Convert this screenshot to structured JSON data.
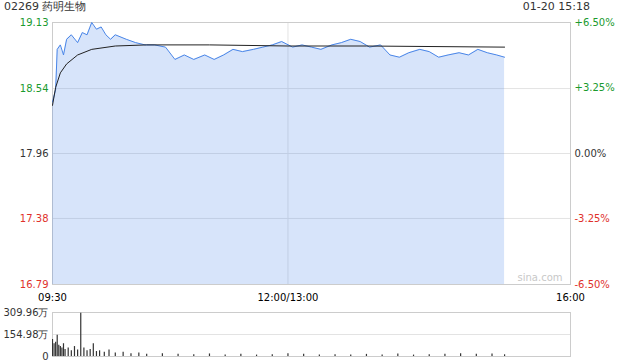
{
  "chart_data": {
    "type": "line",
    "title": "02269 药明生物",
    "subtitle": "01-20 15:18",
    "watermark": "sina.com",
    "grid": true,
    "xlim": [
      0,
      330
    ],
    "xticks": [
      {
        "value": 0,
        "label": "09:30"
      },
      {
        "value": 150,
        "label": "12:00/13:00"
      },
      {
        "value": 330,
        "label": "16:00"
      }
    ],
    "ylim": [
      16.79,
      19.13
    ],
    "yticks": [
      16.79,
      17.38,
      17.96,
      18.54,
      19.13
    ],
    "y2lim": [
      -6.5,
      6.5
    ],
    "y2ticks": [
      {
        "value": -6.5,
        "label": "-6.50%"
      },
      {
        "value": -3.25,
        "label": "-3.25%"
      },
      {
        "value": 0,
        "label": "0.00%"
      },
      {
        "value": 3.25,
        "label": "+3.25%"
      },
      {
        "value": 6.5,
        "label": "+6.50%"
      }
    ],
    "series": [
      {
        "type": "area",
        "color": "#4a86e8",
        "x": [
          0,
          2,
          3,
          5,
          7,
          9,
          12,
          16,
          19,
          22,
          25,
          28,
          31,
          34,
          37,
          40,
          47,
          53,
          59,
          65,
          72,
          78,
          84,
          90,
          97,
          103,
          109,
          115,
          121,
          128,
          134,
          140,
          146,
          153,
          159,
          165,
          171,
          178,
          184,
          190,
          196,
          202,
          209,
          215,
          221,
          227,
          234,
          240,
          246,
          252,
          259,
          265,
          271,
          277,
          283,
          288
        ],
        "values": [
          18.42,
          18.53,
          18.89,
          18.93,
          18.84,
          18.98,
          19.02,
          18.95,
          19.04,
          19.02,
          19.13,
          19.07,
          19.09,
          19.02,
          18.98,
          19.02,
          18.98,
          18.95,
          18.93,
          18.93,
          18.91,
          18.8,
          18.84,
          18.8,
          18.84,
          18.8,
          18.84,
          18.89,
          18.87,
          18.89,
          18.91,
          18.93,
          18.96,
          18.91,
          18.93,
          18.91,
          18.89,
          18.93,
          18.95,
          18.98,
          18.96,
          18.91,
          18.93,
          18.84,
          18.82,
          18.86,
          18.89,
          18.87,
          18.82,
          18.84,
          18.86,
          18.84,
          18.89,
          18.86,
          18.84,
          18.82
        ]
      },
      {
        "type": "line",
        "color": "#222222",
        "x": [
          0,
          2,
          5,
          9,
          16,
          25,
          40,
          60,
          100,
          150,
          200,
          288
        ],
        "values": [
          18.39,
          18.55,
          18.68,
          18.76,
          18.84,
          18.89,
          18.92,
          18.93,
          18.93,
          18.92,
          18.92,
          18.91
        ]
      }
    ],
    "volume": {
      "type": "bar",
      "color": "#333333",
      "ylim": [
        0,
        309.96
      ],
      "yticks": [
        0,
        {
          "value": 154.98,
          "label": "154.98万"
        },
        {
          "value": 309.96,
          "label": "309.96万"
        }
      ],
      "x": [
        0,
        1,
        2,
        3,
        4,
        5,
        6,
        7,
        8,
        10,
        12,
        14,
        16,
        18,
        20,
        22,
        24,
        26,
        28,
        30,
        33,
        36,
        40,
        45,
        50,
        55,
        60,
        70,
        80,
        90,
        100,
        110,
        120,
        130,
        140,
        150,
        160,
        170,
        180,
        190,
        200,
        210,
        220,
        230,
        240,
        250,
        260,
        270,
        280,
        288
      ],
      "values": [
        120,
        90,
        100,
        150,
        80,
        70,
        60,
        90,
        50,
        60,
        40,
        70,
        45,
        305,
        60,
        40,
        50,
        90,
        35,
        40,
        30,
        45,
        25,
        30,
        20,
        25,
        15,
        20,
        15,
        12,
        18,
        10,
        15,
        10,
        12,
        20,
        15,
        10,
        12,
        10,
        15,
        10,
        18,
        10,
        12,
        15,
        20,
        15,
        18,
        12
      ]
    }
  }
}
